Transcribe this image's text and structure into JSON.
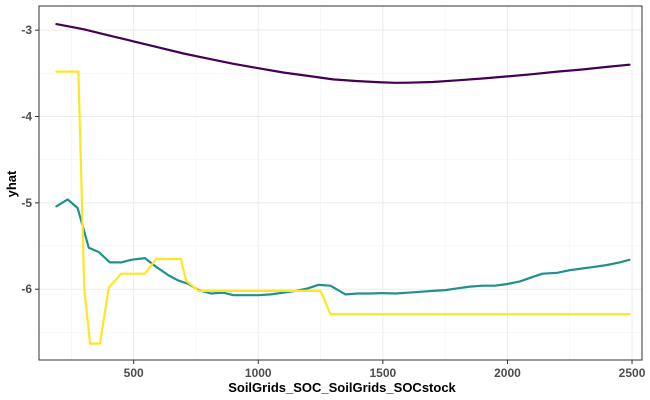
{
  "chart_data": {
    "type": "line",
    "xlabel": "SoilGrids_SOC_SoilGrids_SOCstock",
    "ylabel": "yhat",
    "xlim": [
      120,
      2540
    ],
    "ylim": [
      -6.82,
      -2.72
    ],
    "x_ticks": [
      500,
      1000,
      1500,
      2000,
      2500
    ],
    "y_ticks": [
      -3,
      -4,
      -5,
      -6
    ],
    "x_tick_labels": [
      "500",
      "1000",
      "1500",
      "2000",
      "2500"
    ],
    "y_tick_labels": [
      "-3",
      "-4",
      "-5",
      "-6"
    ],
    "grid": true,
    "series": [
      {
        "color": "#440154",
        "points": [
          [
            190,
            -2.93
          ],
          [
            300,
            -2.99
          ],
          [
            400,
            -3.06
          ],
          [
            500,
            -3.13
          ],
          [
            600,
            -3.2
          ],
          [
            700,
            -3.27
          ],
          [
            800,
            -3.33
          ],
          [
            900,
            -3.39
          ],
          [
            1000,
            -3.44
          ],
          [
            1100,
            -3.49
          ],
          [
            1200,
            -3.53
          ],
          [
            1300,
            -3.57
          ],
          [
            1400,
            -3.59
          ],
          [
            1500,
            -3.605
          ],
          [
            1550,
            -3.61
          ],
          [
            1600,
            -3.608
          ],
          [
            1700,
            -3.6
          ],
          [
            1800,
            -3.58
          ],
          [
            1900,
            -3.56
          ],
          [
            2000,
            -3.535
          ],
          [
            2100,
            -3.51
          ],
          [
            2200,
            -3.48
          ],
          [
            2300,
            -3.455
          ],
          [
            2400,
            -3.425
          ],
          [
            2490,
            -3.4
          ]
        ]
      },
      {
        "color": "#21908C",
        "points": [
          [
            190,
            -5.04
          ],
          [
            235,
            -4.96
          ],
          [
            275,
            -5.06
          ],
          [
            320,
            -5.52
          ],
          [
            360,
            -5.57
          ],
          [
            405,
            -5.69
          ],
          [
            450,
            -5.69
          ],
          [
            490,
            -5.66
          ],
          [
            545,
            -5.64
          ],
          [
            590,
            -5.74
          ],
          [
            640,
            -5.84
          ],
          [
            680,
            -5.9
          ],
          [
            720,
            -5.94
          ],
          [
            760,
            -6.01
          ],
          [
            810,
            -6.05
          ],
          [
            860,
            -6.04
          ],
          [
            900,
            -6.07
          ],
          [
            950,
            -6.07
          ],
          [
            1000,
            -6.07
          ],
          [
            1050,
            -6.06
          ],
          [
            1100,
            -6.04
          ],
          [
            1150,
            -6.02
          ],
          [
            1200,
            -5.99
          ],
          [
            1240,
            -5.95
          ],
          [
            1290,
            -5.96
          ],
          [
            1350,
            -6.06
          ],
          [
            1400,
            -6.05
          ],
          [
            1450,
            -6.05
          ],
          [
            1500,
            -6.045
          ],
          [
            1550,
            -6.05
          ],
          [
            1600,
            -6.04
          ],
          [
            1650,
            -6.03
          ],
          [
            1700,
            -6.02
          ],
          [
            1750,
            -6.01
          ],
          [
            1800,
            -5.99
          ],
          [
            1850,
            -5.97
          ],
          [
            1900,
            -5.96
          ],
          [
            1950,
            -5.96
          ],
          [
            2000,
            -5.94
          ],
          [
            2050,
            -5.91
          ],
          [
            2100,
            -5.86
          ],
          [
            2140,
            -5.82
          ],
          [
            2200,
            -5.81
          ],
          [
            2250,
            -5.78
          ],
          [
            2300,
            -5.76
          ],
          [
            2350,
            -5.74
          ],
          [
            2400,
            -5.72
          ],
          [
            2450,
            -5.69
          ],
          [
            2490,
            -5.66
          ]
        ]
      },
      {
        "color": "#FDE725",
        "points": [
          [
            190,
            -3.48
          ],
          [
            278,
            -3.48
          ],
          [
            302,
            -6.0
          ],
          [
            325,
            -6.63
          ],
          [
            365,
            -6.63
          ],
          [
            400,
            -5.98
          ],
          [
            450,
            -5.82
          ],
          [
            545,
            -5.82
          ],
          [
            590,
            -5.65
          ],
          [
            690,
            -5.65
          ],
          [
            710,
            -5.9
          ],
          [
            760,
            -6.02
          ],
          [
            1000,
            -6.02
          ],
          [
            1250,
            -6.02
          ],
          [
            1290,
            -6.29
          ],
          [
            1500,
            -6.29
          ],
          [
            2000,
            -6.29
          ],
          [
            2490,
            -6.29
          ]
        ]
      }
    ]
  }
}
